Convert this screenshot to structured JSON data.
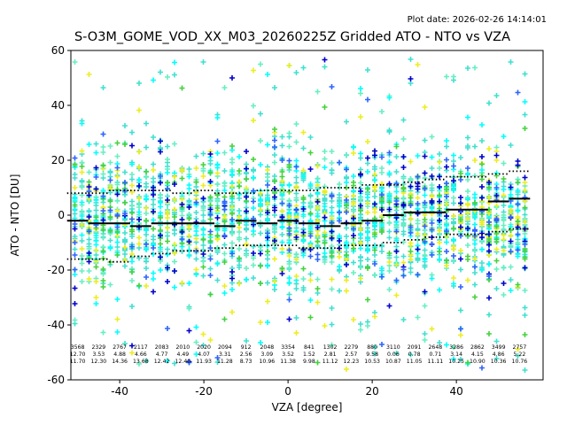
{
  "header": {
    "plot_date": "Plot date: 2026-02-26 14:14:01",
    "title": "S-O3M_GOME_VOD_XX_M03_20260225Z Gridded ATO - NTO vs VZA"
  },
  "chart_data": {
    "type": "scatter",
    "title": "S-O3M_GOME_VOD_XX_M03_20260225Z Gridded ATO - NTO vs VZA",
    "xlabel": "VZA [degree]",
    "ylabel": "ATO - NTO [DU]",
    "xlim": [
      -51.6,
      60.6
    ],
    "ylim": [
      -60,
      60
    ],
    "xticks": [
      -40,
      -20,
      0,
      20,
      40
    ],
    "yticks": [
      -60,
      -40,
      -20,
      0,
      20,
      40,
      60
    ],
    "marker": "plus",
    "grid": false,
    "legend": "none",
    "bins": {
      "vza_centers": [
        -50,
        -45,
        -40,
        -35,
        -30,
        -25,
        -20,
        -15,
        -10,
        -5,
        0,
        5,
        10,
        15,
        20,
        25,
        30,
        35,
        40,
        45,
        50,
        55
      ],
      "counts": [
        3568,
        2329,
        2767,
        2117,
        2083,
        2010,
        2020,
        2094,
        912,
        2048,
        3354,
        841,
        1302,
        2279,
        880,
        3110,
        2091,
        2648,
        3286,
        2862,
        3499,
        2757
      ],
      "mean_bias": [
        12.7,
        3.53,
        4.88,
        4.66,
        4.77,
        4.49,
        4.07,
        3.31,
        2.56,
        3.09,
        3.52,
        1.52,
        2.81,
        2.57,
        9.58,
        0.06,
        0.78,
        0.71,
        3.14,
        4.15,
        4.86,
        5.22
      ],
      "stdev": [
        11.7,
        12.3,
        14.36,
        13.68,
        12.42,
        12.4,
        11.93,
        11.28,
        8.73,
        10.96,
        11.38,
        9.98,
        11.12,
        12.23,
        10.53,
        10.87,
        11.05,
        11.11,
        10.25,
        10.9,
        10.36,
        10.76
      ],
      "median_line": [
        -2,
        -3,
        -3,
        -4,
        -3,
        -3,
        -3,
        -4,
        -2,
        -3,
        -2,
        -3,
        -4,
        -3,
        -2,
        0,
        1,
        1,
        2,
        2,
        5,
        6
      ],
      "upper_dotted": [
        8,
        8,
        9,
        9,
        9,
        8,
        9,
        8,
        8,
        9,
        9,
        9,
        10,
        10,
        11,
        11,
        12,
        13,
        14,
        14,
        15,
        16
      ],
      "lower_dotted": [
        -16,
        -16,
        -17,
        -15,
        -14,
        -13,
        -13,
        -12,
        -11,
        -11,
        -11,
        -12,
        -12,
        -11,
        -11,
        -10,
        -9,
        -8,
        -7,
        -7,
        -6,
        -5
      ]
    },
    "scatter_style": {
      "n_points": 2800,
      "seed": 42,
      "n_columns": 64,
      "x_min": -50.7,
      "x_max": 56.3,
      "y_sigma": 11.5,
      "y_mean": -1,
      "outlier_fraction": 0.12,
      "marker_arm_px": 3,
      "stroke_px": 1.6,
      "palette": [
        {
          "name": "turquoise",
          "color": "#40E0D0",
          "w": 0.38
        },
        {
          "name": "aquamarine",
          "color": "#66EFC2",
          "w": 0.17
        },
        {
          "name": "cyan",
          "color": "#00FFFF",
          "w": 0.14
        },
        {
          "name": "yellow",
          "color": "#EDED1F",
          "w": 0.12
        },
        {
          "name": "green",
          "color": "#44D23C",
          "w": 0.08
        },
        {
          "name": "dark-blue",
          "color": "#0000CD",
          "w": 0.06
        },
        {
          "name": "medium-blue",
          "color": "#2E64FE",
          "w": 0.05
        }
      ],
      "line_color": "#000000"
    }
  }
}
